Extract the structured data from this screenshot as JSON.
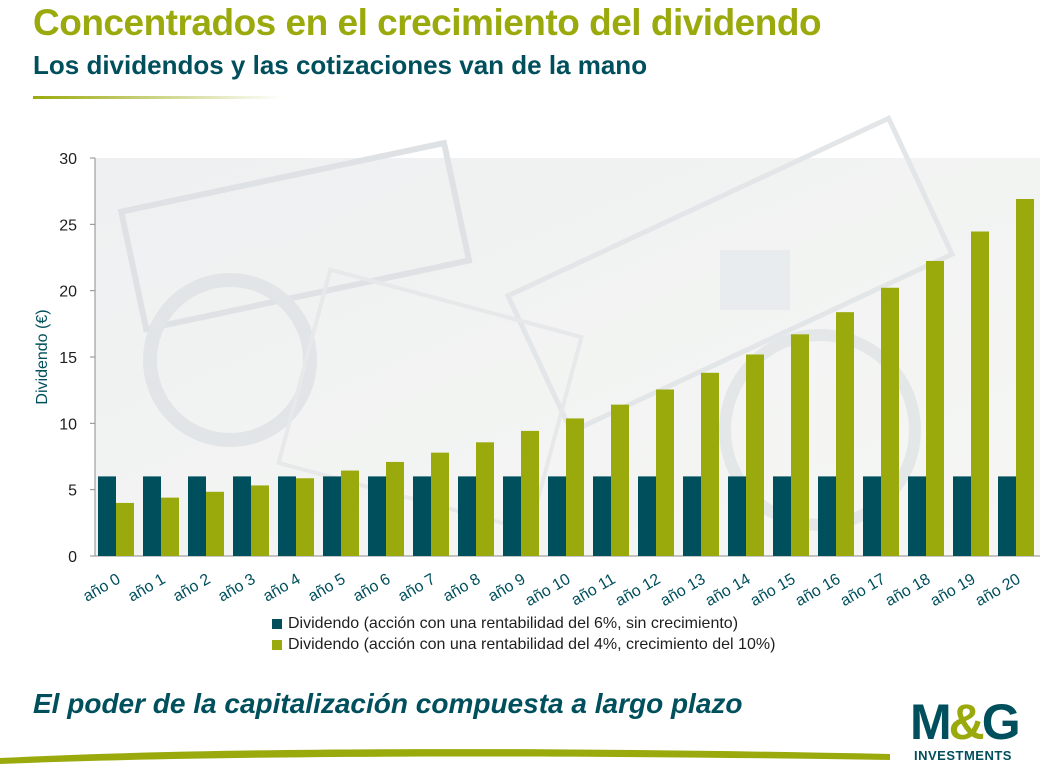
{
  "header": {
    "title": "Concentrados en el crecimiento del dividendo",
    "subtitle": "Los dividendos y las cotizaciones van de la mano"
  },
  "colors": {
    "accent_green": "#9aaa0c",
    "dark_teal": "#004f5c",
    "title_green": "#9aaa0c",
    "subtitle_teal": "#004f5c",
    "tagline_teal": "#004f5c"
  },
  "chart_data": {
    "type": "bar",
    "ylabel": "Dividendo (€)",
    "xlabel": "",
    "ylim": [
      0,
      30
    ],
    "yticks": [
      0,
      5,
      10,
      15,
      20,
      25,
      30
    ],
    "grid": false,
    "legend_position": "bottom",
    "categories": [
      "año 0",
      "año 1",
      "año 2",
      "año 3",
      "año 4",
      "año 5",
      "año 6",
      "año 7",
      "año 8",
      "año 9",
      "año 10",
      "año 11",
      "año 12",
      "año 13",
      "año 14",
      "año 15",
      "año 16",
      "año 17",
      "año 18",
      "año 19",
      "año 20"
    ],
    "series": [
      {
        "name": "Dividendo (acción con una rentabilidad del 6%, sin crecimiento)",
        "color": "#004f5c",
        "values": [
          6,
          6,
          6,
          6,
          6,
          6,
          6,
          6,
          6,
          6,
          6,
          6,
          6,
          6,
          6,
          6,
          6,
          6,
          6,
          6,
          6
        ]
      },
      {
        "name": "Dividendo (acción con una rentabilidad del 4%, crecimiento del 10%)",
        "color": "#9aaa0c",
        "values": [
          4.0,
          4.4,
          4.84,
          5.32,
          5.86,
          6.44,
          7.09,
          7.79,
          8.57,
          9.43,
          10.37,
          11.41,
          12.55,
          13.81,
          15.19,
          16.71,
          18.38,
          20.22,
          22.24,
          24.46,
          26.91
        ]
      }
    ]
  },
  "footer": {
    "tagline": "El poder de la capitalización compuesta a largo plazo",
    "logo_mark_left": "M",
    "logo_mark_amp": "&",
    "logo_mark_right": "G",
    "logo_sub": "INVESTMENTS"
  }
}
